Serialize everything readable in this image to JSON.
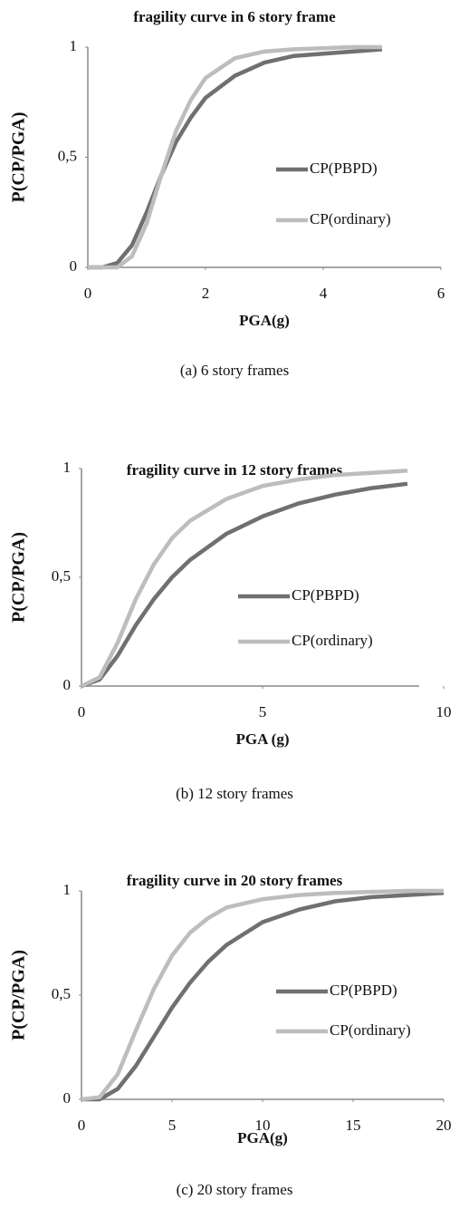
{
  "chart_data": [
    {
      "type": "line",
      "title": "fragility curve in 6 story frame",
      "x_label": "PGA(g)",
      "y_label": "P(CP/PGA)",
      "caption": "(a) 6 story frames",
      "x": [
        0,
        0.25,
        0.5,
        0.75,
        1,
        1.25,
        1.5,
        1.75,
        2,
        2.5,
        3,
        3.5,
        4,
        4.5,
        5
      ],
      "series": [
        {
          "name": "CP(PBPD)",
          "color": "#707070",
          "values": [
            0,
            0,
            0.02,
            0.1,
            0.25,
            0.42,
            0.57,
            0.68,
            0.77,
            0.87,
            0.93,
            0.96,
            0.97,
            0.98,
            0.99
          ]
        },
        {
          "name": "CP(ordinary)",
          "color": "#bdbdbd",
          "values": [
            0,
            0,
            0,
            0.05,
            0.2,
            0.42,
            0.62,
            0.76,
            0.86,
            0.95,
            0.98,
            0.99,
            0.995,
            1,
            1
          ]
        }
      ],
      "xlim": [
        0,
        6
      ],
      "xticks": [
        0,
        2,
        4,
        6
      ],
      "ylim": [
        0,
        1
      ],
      "yticks": [
        0,
        {
          "value": 0.5,
          "label": "0,5"
        },
        1
      ],
      "legend": "right"
    },
    {
      "type": "line",
      "title": "fragility curve in 12 story frames",
      "x_label": "PGA (g)",
      "y_label": "P(CP/PGA)",
      "caption": "(b) 12 story frames",
      "x": [
        0,
        0.5,
        1,
        1.5,
        2,
        2.5,
        3,
        4,
        5,
        6,
        7,
        8,
        9
      ],
      "series": [
        {
          "name": "CP(PBPD)",
          "color": "#707070",
          "values": [
            0,
            0.03,
            0.14,
            0.28,
            0.4,
            0.5,
            0.58,
            0.7,
            0.78,
            0.84,
            0.88,
            0.91,
            0.93
          ]
        },
        {
          "name": "CP(ordinary)",
          "color": "#bdbdbd",
          "values": [
            0,
            0.04,
            0.2,
            0.4,
            0.56,
            0.68,
            0.76,
            0.86,
            0.92,
            0.95,
            0.97,
            0.98,
            0.99
          ]
        }
      ],
      "xlim": [
        0,
        10
      ],
      "xticks": [
        0,
        5,
        10
      ],
      "ylim": [
        0,
        1
      ],
      "yticks": [
        0,
        {
          "value": 0.5,
          "label": "0,5"
        },
        1
      ],
      "legend": "right"
    },
    {
      "type": "line",
      "title": "fragility curve in 20 story frames",
      "x_label": "PGA(g)",
      "y_label": "P(CP/PGA)",
      "caption": "(c) 20 story frames",
      "x": [
        0,
        1,
        2,
        3,
        4,
        5,
        6,
        7,
        8,
        10,
        12,
        14,
        16,
        18,
        20
      ],
      "series": [
        {
          "name": "CP(PBPD)",
          "color": "#707070",
          "values": [
            0,
            0,
            0.05,
            0.16,
            0.3,
            0.44,
            0.56,
            0.66,
            0.74,
            0.85,
            0.91,
            0.95,
            0.97,
            0.98,
            0.99
          ]
        },
        {
          "name": "CP(ordinary)",
          "color": "#bdbdbd",
          "values": [
            0,
            0.01,
            0.12,
            0.33,
            0.53,
            0.69,
            0.8,
            0.87,
            0.92,
            0.96,
            0.98,
            0.99,
            0.995,
            1,
            1
          ]
        }
      ],
      "xlim": [
        0,
        20
      ],
      "xticks": [
        0,
        5,
        10,
        15,
        20
      ],
      "ylim": [
        0,
        1
      ],
      "yticks": [
        0,
        {
          "value": 0.5,
          "label": "0,5"
        },
        1
      ],
      "legend": "right"
    }
  ]
}
